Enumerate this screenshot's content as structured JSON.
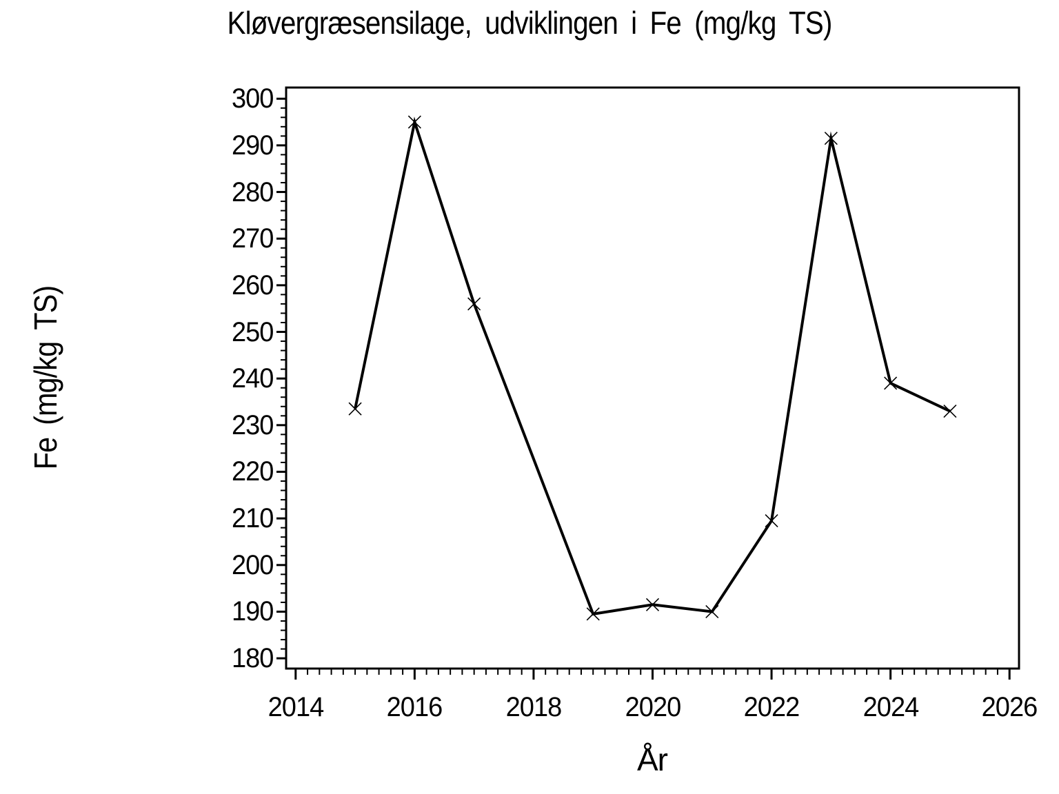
{
  "chart_data": {
    "type": "line",
    "title": "Kløvergræsensilage, udviklingen i Fe (mg/kg TS)",
    "xlabel": "År",
    "ylabel": "Fe (mg/kg TS)",
    "x": [
      2015,
      2016,
      2017,
      2019,
      2020,
      2021,
      2022,
      2023,
      2024,
      2025
    ],
    "y": [
      233.5,
      295,
      256,
      189.5,
      191.5,
      190,
      209.5,
      291.5,
      239,
      233
    ],
    "xlim": [
      2013.84,
      2026.16
    ],
    "ylim": [
      177.8,
      302.4
    ],
    "x_major_ticks": [
      2014,
      2016,
      2018,
      2020,
      2022,
      2024,
      2026
    ],
    "x_minor_step": 0.2,
    "y_major_ticks": [
      180,
      190,
      200,
      210,
      220,
      230,
      240,
      250,
      260,
      270,
      280,
      290,
      300
    ],
    "y_minor_step": 2,
    "marker": "x",
    "line_color": "#000000",
    "background_color": "#ffffff",
    "grid": false,
    "legend": "none"
  }
}
